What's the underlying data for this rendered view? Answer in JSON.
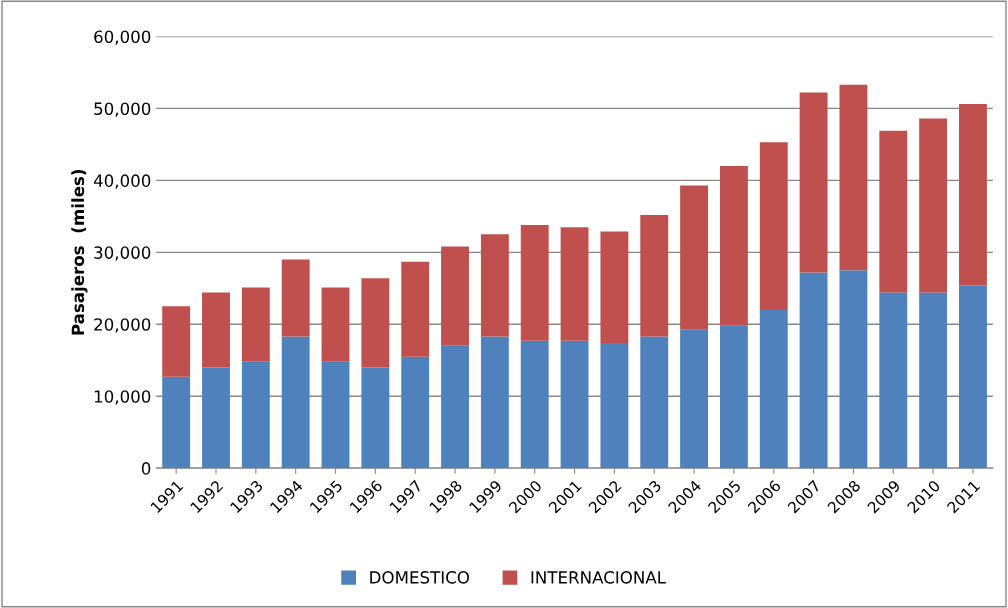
{
  "chart_data": {
    "type": "bar",
    "stacked": true,
    "ylabel": "Pasajeros  (miles)",
    "categories": [
      "1991",
      "1992",
      "1993",
      "1994",
      "1995",
      "1996",
      "1997",
      "1998",
      "1999",
      "2000",
      "2001",
      "2002",
      "2003",
      "2004",
      "2005",
      "2006",
      "2007",
      "2008",
      "2009",
      "2010",
      "2011"
    ],
    "series": [
      {
        "name": "DOMESTICO",
        "color": "#4f81bd",
        "values": [
          12700,
          14000,
          14800,
          18300,
          14800,
          14000,
          15500,
          17000,
          18300,
          17700,
          17700,
          17400,
          18300,
          19300,
          19800,
          22000,
          27200,
          27500,
          24400,
          24400,
          25400
        ]
      },
      {
        "name": "INTERNACIONAL",
        "color": "#c0504d",
        "values": [
          9800,
          10400,
          10300,
          10700,
          10300,
          12400,
          13200,
          13800,
          14200,
          16100,
          15800,
          15500,
          16900,
          20000,
          22200,
          23300,
          25000,
          25800,
          22500,
          24200,
          25200
        ]
      }
    ],
    "ylim": [
      0,
      60000
    ],
    "yticks": [
      {
        "value": 0,
        "label": "0"
      },
      {
        "value": 10000,
        "label": "10,000"
      },
      {
        "value": 20000,
        "label": "20,000"
      },
      {
        "value": 30000,
        "label": "30,000"
      },
      {
        "value": 40000,
        "label": "40,000"
      },
      {
        "value": 50000,
        "label": "50,000"
      },
      {
        "value": 60000,
        "label": "60,000"
      }
    ],
    "grid": "y",
    "legend": "bottom"
  }
}
